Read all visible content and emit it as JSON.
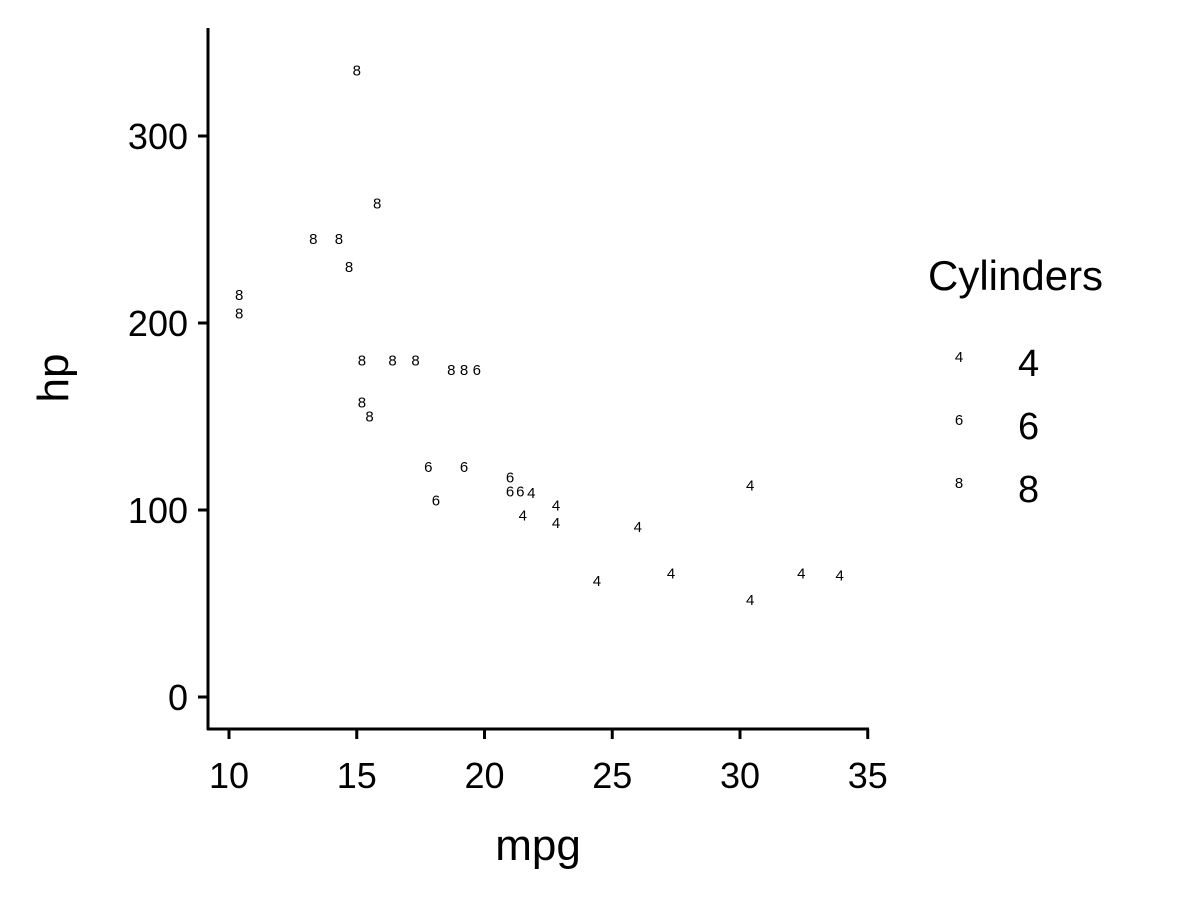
{
  "chart_data": {
    "type": "scatter",
    "title": "",
    "xlabel": "mpg",
    "ylabel": "hp",
    "xlim": [
      9.2,
      35.2
    ],
    "ylim": [
      -17,
      357
    ],
    "x_ticks": [
      10,
      15,
      20,
      25,
      30,
      35
    ],
    "y_ticks": [
      0,
      100,
      200,
      300
    ],
    "grid": false,
    "legend": {
      "title": "Cylinders",
      "position": "right",
      "entries": [
        "4",
        "6",
        "8"
      ]
    },
    "marker": "text label of cylinder count",
    "points": [
      {
        "x": 21.0,
        "y": 110,
        "label": "6"
      },
      {
        "x": 21.0,
        "y": 110,
        "label": "6"
      },
      {
        "x": 22.8,
        "y": 93,
        "label": "4"
      },
      {
        "x": 21.4,
        "y": 110,
        "label": "6"
      },
      {
        "x": 18.7,
        "y": 175,
        "label": "8"
      },
      {
        "x": 18.1,
        "y": 105,
        "label": "6"
      },
      {
        "x": 14.3,
        "y": 245,
        "label": "8"
      },
      {
        "x": 24.4,
        "y": 62,
        "label": "4"
      },
      {
        "x": 22.8,
        "y": 95,
        "label": "4"
      },
      {
        "x": 19.2,
        "y": 123,
        "label": "6"
      },
      {
        "x": 17.8,
        "y": 123,
        "label": "6"
      },
      {
        "x": 16.4,
        "y": 180,
        "label": "8"
      },
      {
        "x": 17.3,
        "y": 180,
        "label": "8"
      },
      {
        "x": 15.2,
        "y": 180,
        "label": "8"
      },
      {
        "x": 10.4,
        "y": 205,
        "label": "8"
      },
      {
        "x": 10.4,
        "y": 215,
        "label": "8"
      },
      {
        "x": 14.7,
        "y": 230,
        "label": "8"
      },
      {
        "x": 32.4,
        "y": 66,
        "label": "4"
      },
      {
        "x": 30.4,
        "y": 52,
        "label": "4"
      },
      {
        "x": 33.9,
        "y": 65,
        "label": "4"
      },
      {
        "x": 21.5,
        "y": 97,
        "label": "4"
      },
      {
        "x": 15.5,
        "y": 150,
        "label": "8"
      },
      {
        "x": 15.2,
        "y": 150,
        "label": "8"
      },
      {
        "x": 13.3,
        "y": 245,
        "label": "8"
      },
      {
        "x": 19.2,
        "y": 175,
        "label": "8"
      },
      {
        "x": 27.3,
        "y": 66,
        "label": "4"
      },
      {
        "x": 26.0,
        "y": 91,
        "label": "4"
      },
      {
        "x": 30.4,
        "y": 113,
        "label": "4"
      },
      {
        "x": 15.8,
        "y": 264,
        "label": "8"
      },
      {
        "x": 19.7,
        "y": 175,
        "label": "6"
      },
      {
        "x": 15.0,
        "y": 335,
        "label": "8"
      },
      {
        "x": 21.4,
        "y": 109,
        "label": "4"
      }
    ]
  }
}
